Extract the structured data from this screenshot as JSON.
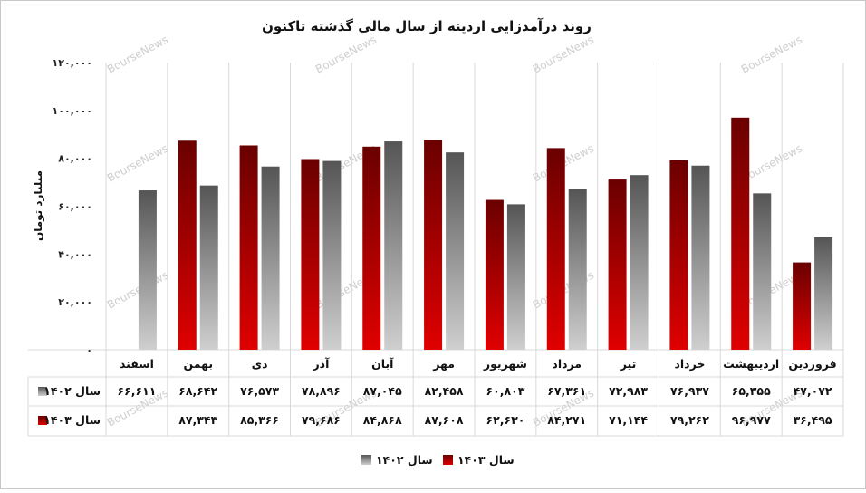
{
  "chart_data": {
    "type": "bar",
    "title": "روند درآمدزایی اردینه از سال مالی گذشته تاکنون",
    "ylabel": "میلیارد تومان",
    "ylim": [
      0,
      120000
    ],
    "yticks": [
      "۰",
      "۲۰,۰۰۰",
      "۴۰,۰۰۰",
      "۶۰,۰۰۰",
      "۸۰,۰۰۰",
      "۱۰۰,۰۰۰",
      "۱۲۰,۰۰۰"
    ],
    "categories": [
      "فروردین",
      "اردیبهشت",
      "خرداد",
      "تیر",
      "مرداد",
      "شهریور",
      "مهر",
      "آبان",
      "آذر",
      "دی",
      "بهمن",
      "اسفند"
    ],
    "series": [
      {
        "name": "سال ۱۴۰۲",
        "color": "#8c8c8c",
        "values": [
          47072,
          65355,
          76937,
          72983,
          67361,
          60803,
          82458,
          87045,
          78896,
          76573,
          68642,
          66611
        ],
        "labels": [
          "۴۷,۰۷۲",
          "۶۵,۳۵۵",
          "۷۶,۹۳۷",
          "۷۲,۹۸۳",
          "۶۷,۳۶۱",
          "۶۰,۸۰۳",
          "۸۲,۴۵۸",
          "۸۷,۰۴۵",
          "۷۸,۸۹۶",
          "۷۶,۵۷۳",
          "۶۸,۶۴۲",
          "۶۶,۶۱۱"
        ]
      },
      {
        "name": "سال ۱۴۰۳",
        "color": "#b00000",
        "values": [
          36495,
          96977,
          79262,
          71144,
          84271,
          62630,
          87608,
          84868,
          79686,
          85366,
          87343,
          null
        ],
        "labels": [
          "۳۶,۴۹۵",
          "۹۶,۹۷۷",
          "۷۹,۲۶۲",
          "۷۱,۱۴۴",
          "۸۴,۲۷۱",
          "۶۲,۶۳۰",
          "۸۷,۶۰۸",
          "۸۴,۸۶۸",
          "۷۹,۶۸۶",
          "۸۵,۳۶۶",
          "۸۷,۳۴۳",
          ""
        ]
      }
    ],
    "legend_position": "bottom",
    "grid": false,
    "data_table": true
  },
  "watermark": "BourseNews"
}
